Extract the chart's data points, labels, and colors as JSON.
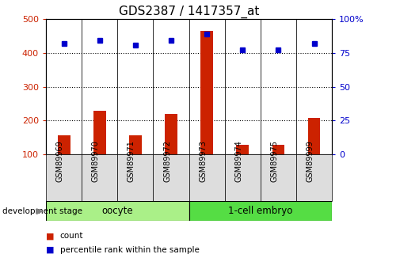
{
  "title": "GDS2387 / 1417357_at",
  "samples": [
    "GSM89969",
    "GSM89970",
    "GSM89971",
    "GSM89972",
    "GSM89973",
    "GSM89974",
    "GSM89975",
    "GSM89999"
  ],
  "counts": [
    155,
    228,
    155,
    220,
    465,
    127,
    127,
    207
  ],
  "percentile_ranks": [
    82,
    84,
    81,
    84,
    89,
    77,
    77,
    82
  ],
  "ylim_left": [
    100,
    500
  ],
  "ylim_right": [
    0,
    100
  ],
  "yticks_left": [
    100,
    200,
    300,
    400,
    500
  ],
  "yticks_right": [
    0,
    25,
    50,
    75,
    100
  ],
  "yticklabels_right": [
    "0",
    "25",
    "50",
    "75",
    "100%"
  ],
  "bar_color": "#cc2200",
  "dot_color": "#0000cc",
  "groups": [
    {
      "label": "oocyte",
      "start": 0,
      "end": 4,
      "color": "#aaf088"
    },
    {
      "label": "1-cell embryo",
      "start": 4,
      "end": 8,
      "color": "#55dd44"
    }
  ],
  "dev_stage_label": "development stage",
  "legend_count_label": "count",
  "legend_pct_label": "percentile rank within the sample",
  "tick_label_color_left": "#cc2200",
  "tick_label_color_right": "#0000cc",
  "title_fontsize": 11,
  "axis_fontsize": 8,
  "sample_box_color": "#dddddd",
  "grid_dotted_values": [
    200,
    300,
    400
  ]
}
